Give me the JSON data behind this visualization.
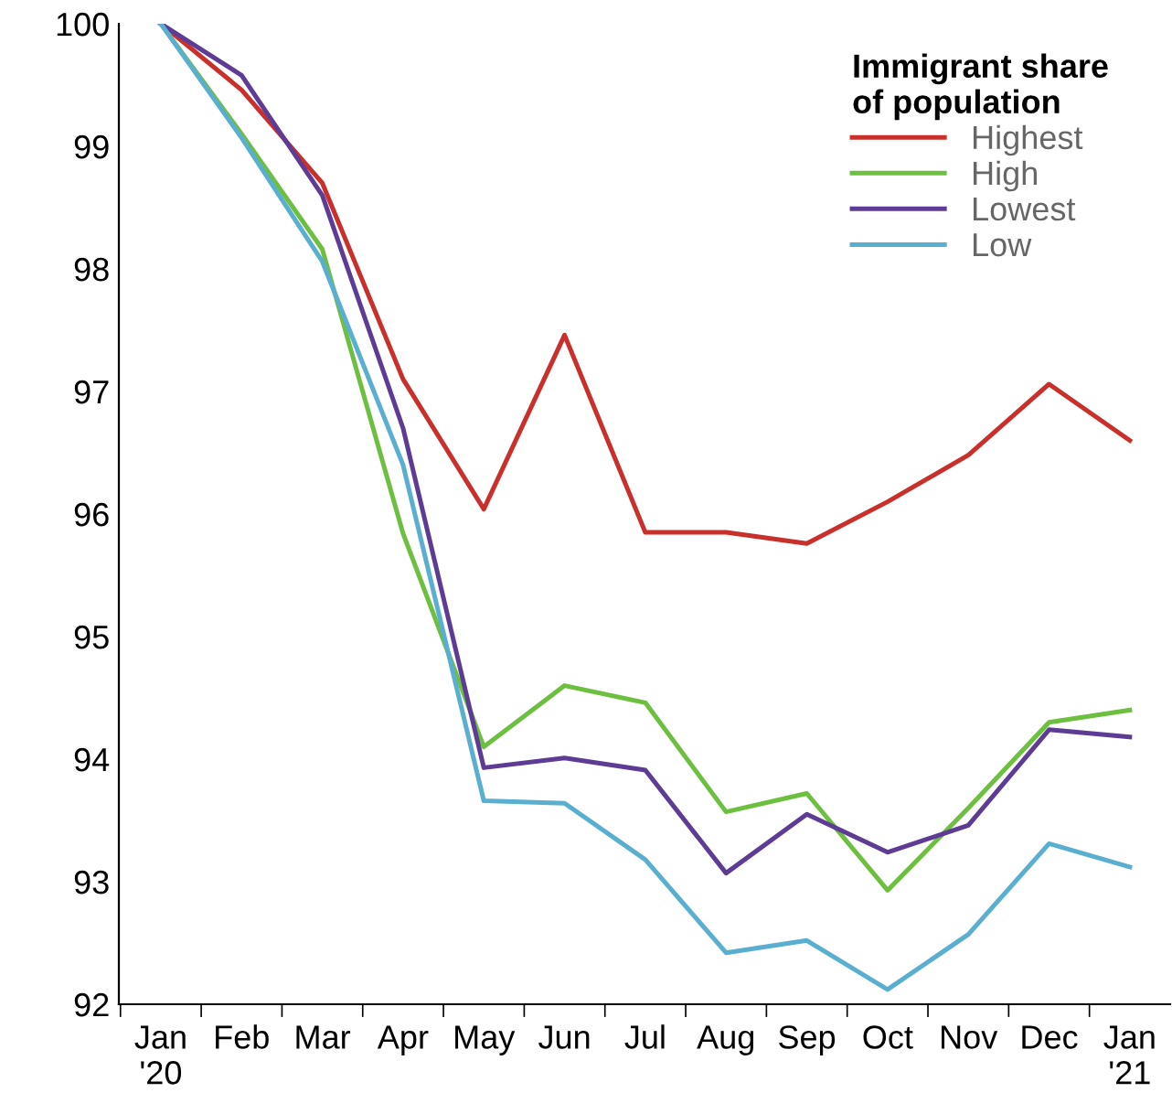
{
  "chart_data": {
    "type": "line",
    "legend_title": "Immigrant share\nof population",
    "categories": [
      "Jan\n'20",
      "Feb",
      "Mar",
      "Apr",
      "May",
      "Jun",
      "Jul",
      "Aug",
      "Sep",
      "Oct",
      "Nov",
      "Dec",
      "Jan\n'21"
    ],
    "series": [
      {
        "name": "Highest",
        "color": "#c9302c",
        "values": [
          100,
          99.46,
          98.7,
          97.1,
          96.04,
          97.46,
          95.85,
          95.85,
          95.76,
          96.1,
          96.48,
          97.06,
          96.6
        ]
      },
      {
        "name": "High",
        "color": "#6cbf3f",
        "values": [
          100,
          99.1,
          98.16,
          95.84,
          94.1,
          94.6,
          94.46,
          93.57,
          93.72,
          92.93,
          93.6,
          94.3,
          94.4
        ]
      },
      {
        "name": "Lowest",
        "color": "#5e3b94",
        "values": [
          100,
          99.58,
          98.6,
          96.7,
          93.93,
          94.01,
          93.91,
          93.07,
          93.55,
          93.24,
          93.46,
          94.24,
          94.18
        ]
      },
      {
        "name": "Low",
        "color": "#5aafd0",
        "values": [
          100,
          99.07,
          98.06,
          96.4,
          93.66,
          93.64,
          93.18,
          92.42,
          92.52,
          92.12,
          92.57,
          93.31,
          93.12
        ]
      }
    ],
    "ylim": [
      92,
      100
    ],
    "yticks": [
      92,
      93,
      94,
      95,
      96,
      97,
      98,
      99,
      100
    ],
    "grid": false,
    "legend": "top right",
    "marker": "none",
    "line_style": "solid"
  }
}
